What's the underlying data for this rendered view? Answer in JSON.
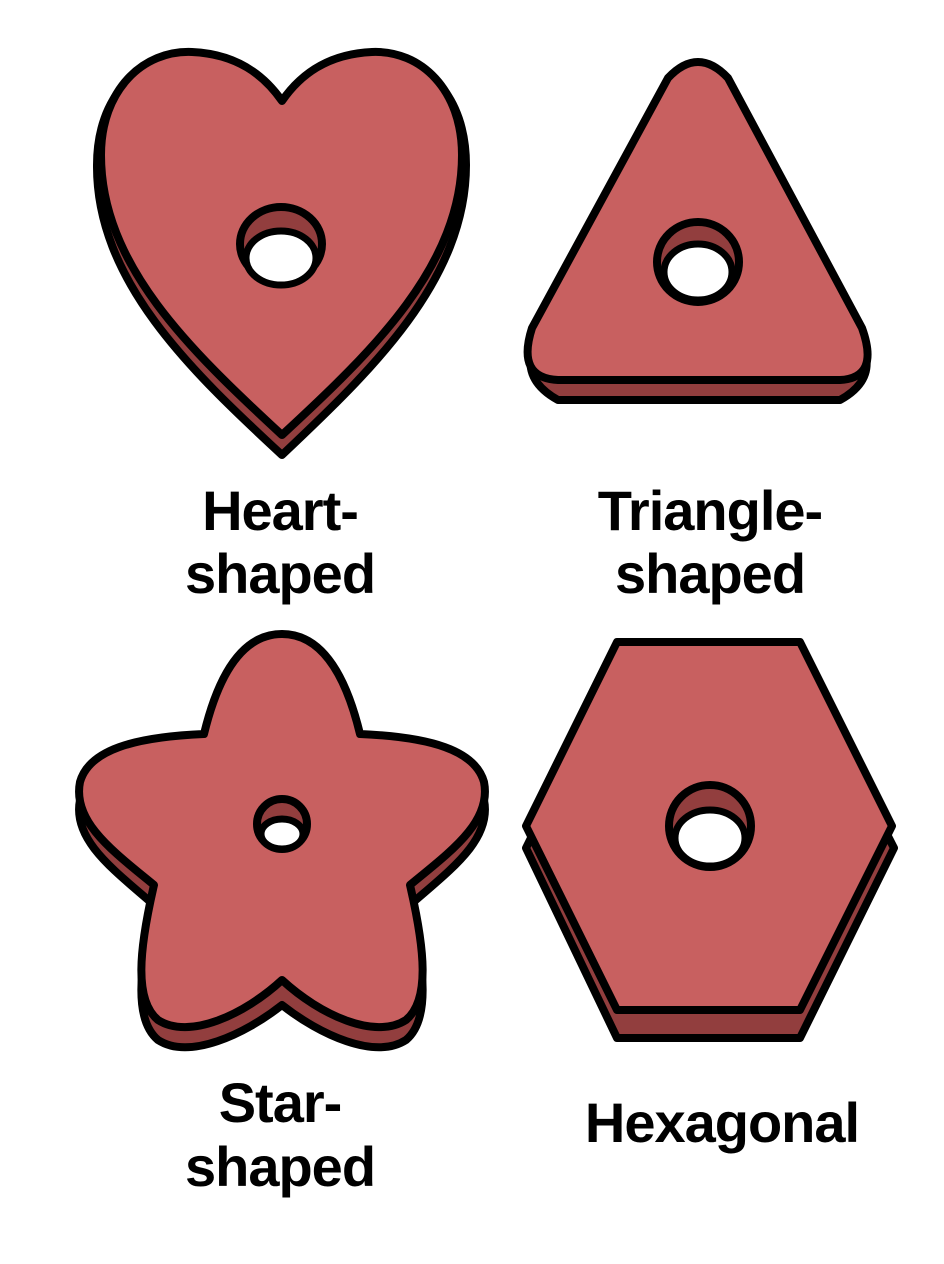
{
  "colors": {
    "top_face": "#c86060",
    "side_face": "#923e3e",
    "outline": "#000000",
    "background": "#ffffff"
  },
  "items": [
    {
      "shape": "heart",
      "label_line1": "Heart-",
      "label_line2": "shaped"
    },
    {
      "shape": "triangle",
      "label_line1": "Triangle-",
      "label_line2": "shaped"
    },
    {
      "shape": "star",
      "label_line1": "Star-",
      "label_line2": "shaped"
    },
    {
      "shape": "hexagon",
      "label_line1": "Hexagonal"
    }
  ]
}
